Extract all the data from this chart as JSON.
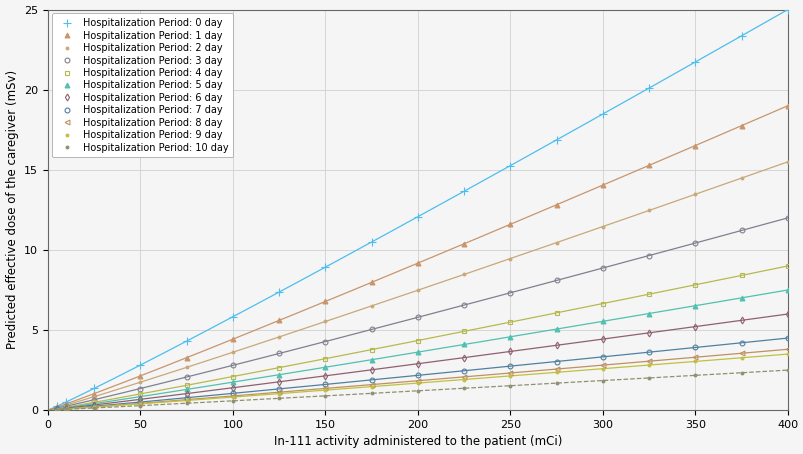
{
  "x_label": "In-111 activity administered to the patient (mCi)",
  "y_label": "Predicted effective dose of the caregiver (mSv)",
  "x_min": 0,
  "x_max": 400,
  "y_min": 0,
  "y_max": 25,
  "x_ticks": [
    0,
    50,
    100,
    150,
    200,
    250,
    300,
    350,
    400
  ],
  "y_ticks": [
    0,
    5,
    10,
    15,
    20,
    25
  ],
  "series": [
    {
      "label": "Hospitalization Period: 0 day",
      "color": "#4DBEEE",
      "marker": "+",
      "linestyle": "-",
      "a": 0.06255,
      "power": 1.0
    },
    {
      "label": "Hospitalization Period: 1 day",
      "color": "#D4A96A",
      "marker": "^",
      "linestyle": "-",
      "a": 0.0473,
      "power": 1.0
    },
    {
      "label": "Hospitalization Period: 2 day",
      "color": "#D4B483",
      "marker": ".",
      "linestyle": "-",
      "a": 0.0388,
      "power": 1.0
    },
    {
      "label": "Hospitalization Period: 3 day",
      "color": "#808080",
      "marker": "o",
      "linestyle": "-",
      "a": 0.03,
      "power": 1.0
    },
    {
      "label": "Hospitalization Period: 4 day",
      "color": "#B8B860",
      "marker": "s",
      "linestyle": "-",
      "a": 0.0226,
      "power": 1.0
    },
    {
      "label": "Hospitalization Period: 5 day",
      "color": "#56C8C8",
      "marker": "^",
      "linestyle": "-",
      "a": 0.0187,
      "power": 1.0
    },
    {
      "label": "Hospitalization Period: 6 day",
      "color": "#8B4069",
      "marker": "d",
      "linestyle": "-",
      "a": 0.0148,
      "power": 1.0
    },
    {
      "label": "Hospitalization Period: 7 day",
      "color": "#4682B4",
      "marker": "o",
      "linestyle": "-",
      "a": 0.0113,
      "power": 1.0
    },
    {
      "label": "Hospitalization Period: 8 day",
      "color": "#CD853F",
      "marker": "<",
      "linestyle": "-",
      "a": 0.0095,
      "power": 1.0
    },
    {
      "label": "Hospitalization Period: 9 day",
      "color": "#C8C840",
      "marker": ".",
      "linestyle": "-",
      "a": 0.0087,
      "power": 1.0
    },
    {
      "label": "Hospitalization Period: 10 day",
      "color": "#808060",
      "marker": ".",
      "linestyle": "--",
      "a": 0.0062,
      "power": 1.0
    }
  ],
  "x_data": [
    5,
    10,
    25,
    50,
    75,
    100,
    125,
    150,
    175,
    200,
    225,
    250,
    275,
    300,
    325,
    350,
    375,
    400
  ],
  "end_values": [
    25.0,
    19.0,
    15.5,
    12.0,
    9.0,
    7.5,
    6.0,
    4.5,
    3.8,
    3.5,
    2.5
  ],
  "background_color": "#f5f5f5",
  "grid": true,
  "figsize": [
    8.04,
    4.54
  ],
  "dpi": 100
}
